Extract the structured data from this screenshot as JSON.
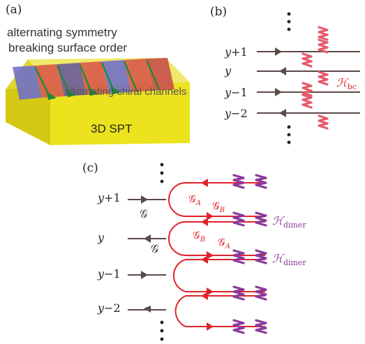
{
  "panel_a": {
    "label": "(a)",
    "surface_text_line1": "alternating symmetry",
    "surface_text_line2": "breaking surface order",
    "channels_text": "alternating chiral channels",
    "bulk_text": "3D SPT"
  },
  "panel_b": {
    "label": "(b)",
    "rows": [
      {
        "name": "y",
        "suffix": "+1",
        "direction": "right"
      },
      {
        "name": "y",
        "suffix": "",
        "direction": "left"
      },
      {
        "name": "y",
        "suffix": "−1",
        "direction": "right"
      },
      {
        "name": "y",
        "suffix": "−2",
        "direction": "left"
      }
    ],
    "coupling_label": "ℋ",
    "coupling_sub": "bc"
  },
  "panel_c": {
    "label": "(c)",
    "rows": [
      {
        "name": "y",
        "suffix": "+1",
        "direction": "right"
      },
      {
        "name": "y",
        "suffix": "",
        "direction": "left"
      },
      {
        "name": "y",
        "suffix": "−1",
        "direction": "right"
      },
      {
        "name": "y",
        "suffix": "−2",
        "direction": "left"
      }
    ],
    "g_label": "𝒢",
    "g_a_sub": "A",
    "g_b_sub": "B",
    "dimer_label": "ℋ",
    "dimer_sub": "dimer"
  },
  "colors": {
    "line": "#5a4a48",
    "red": "#e0232a",
    "pink": "#e65a6a",
    "purple": "#8a3a9a",
    "yellow": "#ece21e",
    "green": "#1a8a3a"
  }
}
